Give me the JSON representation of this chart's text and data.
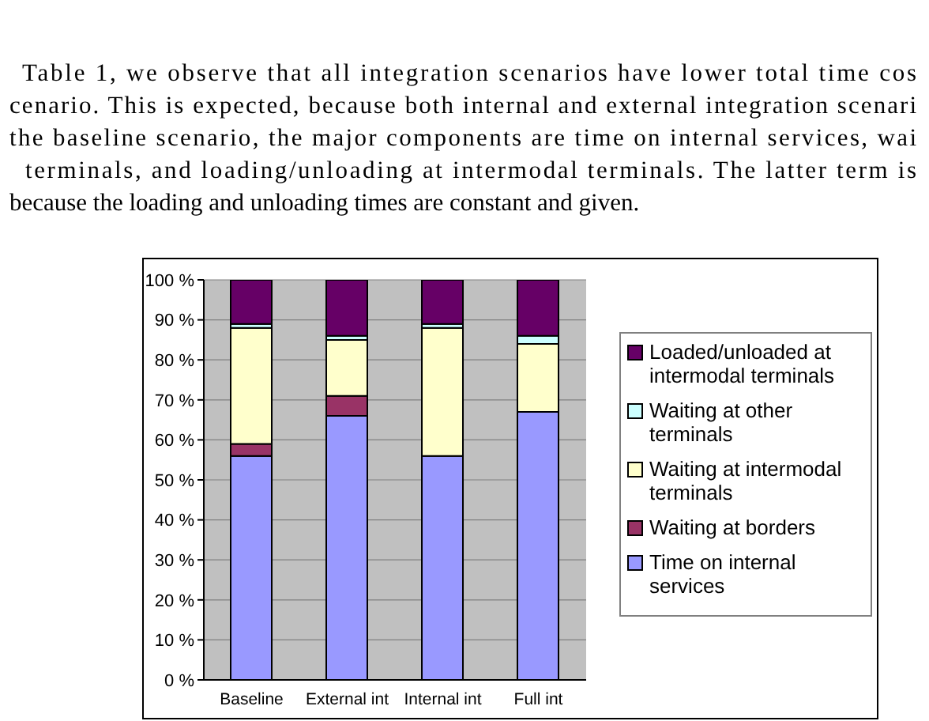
{
  "chart_data": {
    "type": "bar",
    "stacked": true,
    "annotations": [
      "Table 1, we observe that all integration scenarios have lower total time cos",
      "cenario. This is expected, because both internal and external integration scenari",
      "the baseline scenario, the major components are time on internal services, wai",
      "terminals, and loading/unloading at intermodal terminals. The latter term is",
      "because the loading and unloading times are constant and given."
    ],
    "categories": [
      "Baseline",
      "External int",
      "Internal int",
      "Full int"
    ],
    "series": [
      {
        "name": "Time on internal services",
        "color": "#9999ff",
        "values": [
          56,
          66,
          56,
          67
        ]
      },
      {
        "name": "Waiting at borders",
        "color": "#993366",
        "values": [
          3,
          5,
          0,
          0
        ]
      },
      {
        "name": "Waiting at intermodal terminals",
        "color": "#ffffcc",
        "values": [
          29,
          14,
          32,
          17
        ]
      },
      {
        "name": "Waiting at other terminals",
        "color": "#ccffff",
        "values": [
          1,
          1,
          1,
          2
        ]
      },
      {
        "name": "Loaded/unloaded at intermodal terminals",
        "color": "#660066",
        "values": [
          11,
          14,
          11,
          14
        ]
      }
    ],
    "ylim": [
      0,
      100
    ],
    "yticks": [
      {
        "value": 0,
        "label": "0 %"
      },
      {
        "value": 10,
        "label": "10 %"
      },
      {
        "value": 20,
        "label": "20 %"
      },
      {
        "value": 30,
        "label": "30 %"
      },
      {
        "value": 40,
        "label": "40 %"
      },
      {
        "value": 50,
        "label": "50 %"
      },
      {
        "value": 60,
        "label": "60 %"
      },
      {
        "value": 70,
        "label": "70 %"
      },
      {
        "value": 80,
        "label": "80 %"
      },
      {
        "value": 90,
        "label": "90 %"
      },
      {
        "value": 100,
        "label": "100 %"
      }
    ],
    "grid": "y",
    "legend": "right"
  }
}
